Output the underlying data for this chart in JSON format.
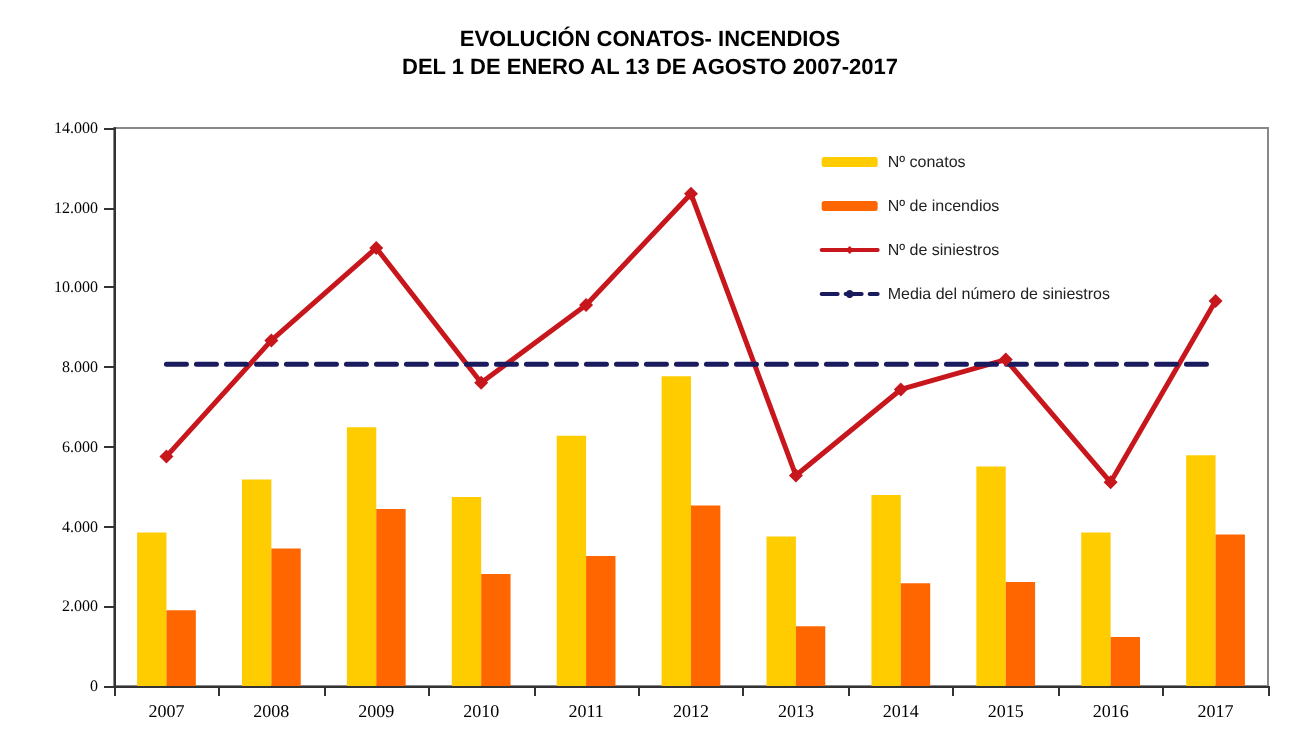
{
  "chart_data": {
    "type": "bar",
    "title": "EVOLUCIÓN CONATOS- INCENDIOS\nDEL 1 DE ENERO AL 13 DE AGOSTO 2007-2017",
    "categories": [
      "2007",
      "2008",
      "2009",
      "2010",
      "2011",
      "2012",
      "2013",
      "2014",
      "2015",
      "2016",
      "2017"
    ],
    "series": [
      {
        "name": "Nº conatos",
        "color": "#ffcc00",
        "values": [
          3850,
          5180,
          6490,
          4740,
          6280,
          7770,
          3750,
          4790,
          5510,
          3850,
          5790
        ]
      },
      {
        "name": "Nº de incendios",
        "color": "#ff6600",
        "values": [
          1900,
          3450,
          4440,
          2810,
          3260,
          4530,
          1500,
          2580,
          2610,
          1230,
          3800
        ]
      },
      {
        "name": "Nº de siniestros",
        "type": "line",
        "color": "#c8161d",
        "marker": "diamond",
        "line_style": "solid",
        "values": [
          5760,
          8670,
          10990,
          7610,
          9560,
          12350,
          5280,
          7440,
          8190,
          5110,
          9660
        ]
      },
      {
        "name": "Media del número de siniestros",
        "type": "line",
        "color": "#1a1a5e",
        "marker": "none",
        "line_style": "dashed",
        "values": [
          8070,
          8070,
          8070,
          8070,
          8070,
          8070,
          8070,
          8070,
          8070,
          8070,
          8070
        ]
      }
    ],
    "ylim": [
      0,
      14000
    ],
    "yticks": [
      0,
      {
        "value": 2000,
        "label": "2.000"
      },
      {
        "value": 4000,
        "label": "4.000"
      },
      {
        "value": 6000,
        "label": "6.000"
      },
      {
        "value": 8000,
        "label": "8.000"
      },
      {
        "value": 10000,
        "label": "10.000"
      },
      {
        "value": 12000,
        "label": "12.000"
      },
      {
        "value": 14000,
        "label": "14.000"
      }
    ],
    "grid": false,
    "legend": "top right"
  }
}
